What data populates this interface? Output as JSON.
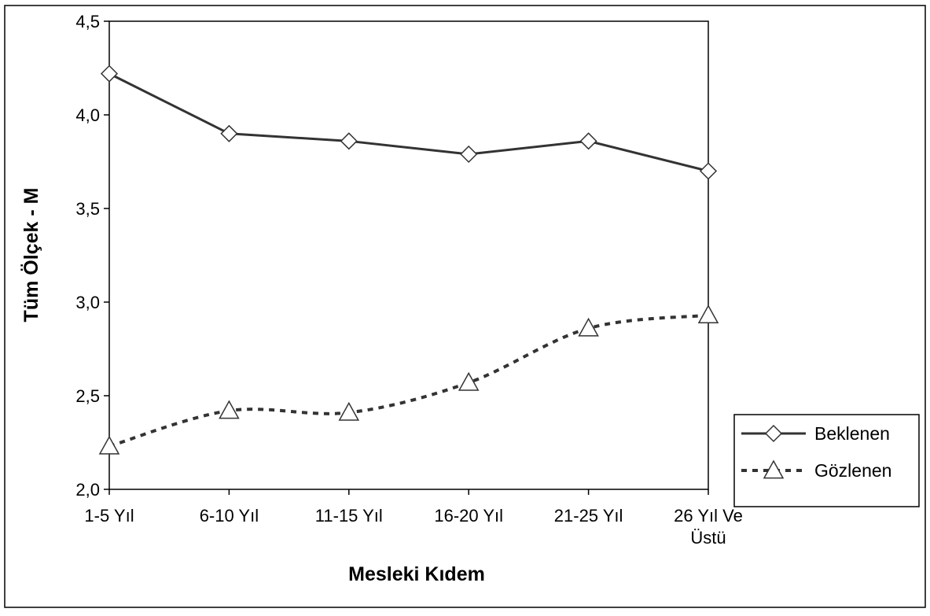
{
  "chart_data": {
    "type": "line",
    "title": "",
    "xlabel": "Mesleki Kıdem",
    "ylabel": "Tüm Ölçek - M",
    "ylim": [
      2.0,
      4.5
    ],
    "y_ticks": [
      "2,0",
      "2,5",
      "3,0",
      "3,5",
      "4,0",
      "4,5"
    ],
    "y_tick_values": [
      2.0,
      2.5,
      3.0,
      3.5,
      4.0,
      4.5
    ],
    "categories": [
      [
        "1-5 Yıl"
      ],
      [
        "6-10 Yıl"
      ],
      [
        "11-15 Yıl"
      ],
      [
        "16-20 Yıl"
      ],
      [
        "21-25 Yıl"
      ],
      [
        "26 Yıl Ve",
        "Üstü"
      ]
    ],
    "grid": false,
    "legend_position": "right",
    "series": [
      {
        "name": "Beklenen",
        "values": [
          4.22,
          3.9,
          3.86,
          3.79,
          3.86,
          3.7
        ],
        "marker": "diamond",
        "line_style": "solid",
        "color": "#333333"
      },
      {
        "name": "Gözlenen",
        "values": [
          2.23,
          2.42,
          2.41,
          2.57,
          2.86,
          2.93
        ],
        "marker": "triangle",
        "line_style": "dashed",
        "color": "#333333"
      }
    ]
  }
}
